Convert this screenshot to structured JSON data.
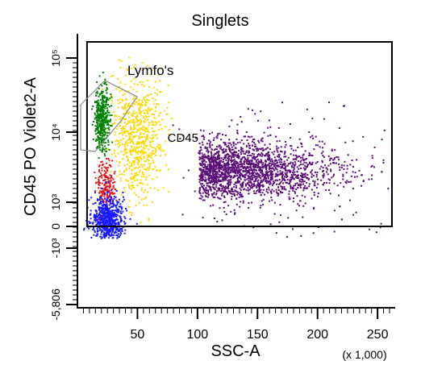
{
  "chart_data": {
    "type": "scatter",
    "title": "Singlets",
    "xlabel": "SSC-A",
    "ylabel": "CD45 PO Violet2-A",
    "x_multiplier_label": "(x 1,000)",
    "x_scale": "linear",
    "y_scale": "biexponential",
    "xlim": [
      0,
      262
    ],
    "x_ticks": [
      50,
      100,
      150,
      200,
      250
    ],
    "x_tick_labels": [
      "50",
      "100",
      "150",
      "200",
      "250"
    ],
    "y_ticks": [
      -5806,
      -1000,
      0,
      1000,
      10000,
      100000
    ],
    "y_tick_labels": [
      "-5,806",
      "-10³",
      "0",
      "10³",
      "10⁴",
      "10⁵"
    ],
    "gates": [
      {
        "name": "CD45",
        "shape": "rectangle",
        "x_range": [
          8,
          262
        ],
        "y_range": [
          0,
          150000
        ]
      },
      {
        "name": "Lymfo's",
        "shape": "polygon"
      }
    ],
    "series": [
      {
        "name": "",
        "color": "#5a0f78",
        "cluster_center": [
          130,
          3000
        ],
        "approx_events": 4200
      },
      {
        "name": "",
        "color": "#ffd800",
        "cluster_center": [
          50,
          8000
        ],
        "approx_events": 900
      },
      {
        "name": "",
        "color": "#008000",
        "cluster_center": [
          20,
          15000
        ],
        "approx_events": 500
      },
      {
        "name": "",
        "color": "#e8141a",
        "cluster_center": [
          22,
          1800
        ],
        "approx_events": 250
      },
      {
        "name": "",
        "color": "#1a1aff",
        "cluster_center": [
          25,
          300
        ],
        "approx_events": 900
      }
    ],
    "grid": false,
    "legend": "none"
  }
}
